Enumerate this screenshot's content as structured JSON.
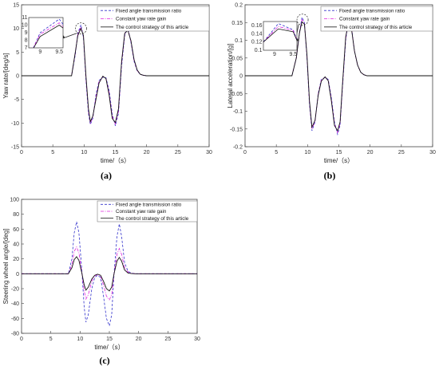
{
  "colors": {
    "fixed": "#3333cc",
    "constant": "#dd22dd",
    "control": "#111111",
    "axis": "#444444"
  },
  "chart_data": [
    {
      "type": "line",
      "caption": "(a)",
      "xlabel": "time/（s）",
      "ylabel": "Yaw rate/[deg/s]",
      "xlim": [
        0,
        30
      ],
      "ylim": [
        -15,
        15
      ],
      "xticks": [
        0,
        5,
        10,
        15,
        20,
        25,
        30
      ],
      "yticks": [
        -15,
        -10,
        -5,
        0,
        5,
        10,
        15
      ],
      "legend_position": "top-right",
      "inset": {
        "xlim": [
          8.7,
          9.6
        ],
        "ylim": [
          7,
          11
        ],
        "xticks": [
          9,
          9.5
        ],
        "yticks": [
          7,
          8,
          9,
          10,
          11
        ],
        "focus": [
          9.5,
          10
        ]
      },
      "series": [
        {
          "name": "Fixed angle transmission ratio",
          "style": "dash",
          "color": "#3333cc",
          "x": [
            0,
            8,
            8.6,
            9.0,
            9.5,
            9.9,
            10.3,
            10.7,
            11.0,
            11.4,
            11.9,
            12.4,
            13.0,
            13.5,
            14.0,
            14.5,
            15.0,
            15.5,
            16.0,
            16.5,
            17.0,
            17.5,
            18.0,
            18.5,
            19.0,
            19.5,
            20,
            20.5,
            30
          ],
          "y": [
            0,
            0,
            4.5,
            9.0,
            10.8,
            8.0,
            -1.0,
            -8.0,
            -10.3,
            -9.0,
            -4.0,
            -1.0,
            -0.3,
            -0.4,
            -3.0,
            -8.0,
            -10.6,
            -8.0,
            2.0,
            8.5,
            10.2,
            7.0,
            3.0,
            1.0,
            0.3,
            0.1,
            0,
            0,
            0
          ]
        },
        {
          "name": "Constant yaw rate gain",
          "style": "dashdot",
          "color": "#dd22dd",
          "x": [
            0,
            8,
            8.6,
            9.0,
            9.5,
            9.9,
            10.3,
            10.7,
            11.0,
            11.4,
            11.9,
            12.4,
            13.0,
            13.5,
            14.0,
            14.5,
            15.0,
            15.5,
            16.0,
            16.5,
            17.0,
            17.5,
            18.0,
            18.5,
            19.0,
            19.5,
            20,
            20.5,
            30
          ],
          "y": [
            0,
            0,
            4.8,
            8.8,
            10.3,
            8.3,
            -0.5,
            -7.5,
            -10.0,
            -8.7,
            -4.5,
            -1.2,
            -0.2,
            -0.5,
            -3.5,
            -8.5,
            -10.2,
            -7.5,
            2.5,
            8.8,
            9.8,
            7.2,
            3.2,
            1.1,
            0.3,
            0.1,
            0,
            0,
            0
          ]
        },
        {
          "name": "The control strategy of this article",
          "style": "solid",
          "color": "#111111",
          "x": [
            0,
            8,
            8.6,
            9.0,
            9.5,
            9.9,
            10.3,
            10.7,
            11.0,
            11.4,
            11.9,
            12.4,
            13.0,
            13.5,
            14.0,
            14.5,
            15.0,
            15.5,
            16.0,
            16.5,
            17.0,
            17.5,
            18.0,
            18.5,
            19.0,
            19.5,
            20,
            20.5,
            30
          ],
          "y": [
            0,
            0,
            5.0,
            8.5,
            10.0,
            8.5,
            0.0,
            -7.0,
            -9.7,
            -8.5,
            -5.0,
            -1.5,
            -0.1,
            -0.6,
            -4.0,
            -9.0,
            -9.9,
            -7.0,
            3.0,
            9.0,
            9.6,
            7.4,
            3.4,
            1.2,
            0.3,
            0.1,
            0,
            0,
            0
          ]
        }
      ]
    },
    {
      "type": "line",
      "caption": "(b)",
      "xlabel": "time/（s）",
      "ylabel": "Lateral acceleration/[g]",
      "xlim": [
        0,
        30
      ],
      "ylim": [
        -0.2,
        0.2
      ],
      "xticks": [
        0,
        5,
        10,
        15,
        20,
        25,
        30
      ],
      "yticks": [
        -0.2,
        -0.15,
        -0.1,
        -0.05,
        0,
        0.05,
        0.1,
        0.15,
        0.2
      ],
      "legend_position": "top-right",
      "inset": {
        "xlim": [
          8.7,
          9.6
        ],
        "ylim": [
          0.1,
          0.17
        ],
        "xticks": [
          9,
          9.5
        ],
        "yticks": [
          0.1,
          0.12,
          0.14,
          0.16
        ],
        "focus": [
          9.2,
          0.158
        ]
      },
      "series": [
        {
          "name": "Fixed angle transmission ratio",
          "style": "dash",
          "color": "#3333cc",
          "x": [
            0,
            7.5,
            8.2,
            8.7,
            9.1,
            9.5,
            9.9,
            10.3,
            10.7,
            11.2,
            11.7,
            12.2,
            12.8,
            13.3,
            13.8,
            14.3,
            14.8,
            15.2,
            15.6,
            16.1,
            16.6,
            17.0,
            17.5,
            18.0,
            18.5,
            19,
            19.5,
            20,
            30
          ],
          "y": [
            0,
            0,
            0.05,
            0.12,
            0.165,
            0.15,
            0.05,
            -0.08,
            -0.155,
            -0.13,
            -0.05,
            -0.01,
            -0.005,
            -0.01,
            -0.06,
            -0.13,
            -0.165,
            -0.14,
            -0.03,
            0.1,
            0.165,
            0.14,
            0.07,
            0.03,
            0.01,
            0.003,
            0,
            0,
            0
          ]
        },
        {
          "name": "Constant yaw rate gain",
          "style": "dashdot",
          "color": "#dd22dd",
          "x": [
            0,
            7.5,
            8.2,
            8.7,
            9.1,
            9.5,
            9.9,
            10.3,
            10.7,
            11.2,
            11.7,
            12.2,
            12.8,
            13.3,
            13.8,
            14.3,
            14.8,
            15.2,
            15.6,
            16.1,
            16.6,
            17.0,
            17.5,
            18.0,
            18.5,
            19,
            19.5,
            20,
            30
          ],
          "y": [
            0,
            0,
            0.05,
            0.12,
            0.158,
            0.148,
            0.055,
            -0.075,
            -0.15,
            -0.128,
            -0.052,
            -0.012,
            -0.004,
            -0.012,
            -0.065,
            -0.135,
            -0.16,
            -0.135,
            -0.025,
            0.105,
            0.16,
            0.138,
            0.07,
            0.03,
            0.01,
            0.003,
            0,
            0,
            0
          ]
        },
        {
          "name": "The control strategy of this article",
          "style": "solid",
          "color": "#111111",
          "x": [
            0,
            7.5,
            8.2,
            8.7,
            9.1,
            9.5,
            9.9,
            10.3,
            10.7,
            11.2,
            11.7,
            12.2,
            12.8,
            13.3,
            13.8,
            14.3,
            14.8,
            15.2,
            15.6,
            16.1,
            16.6,
            17.0,
            17.5,
            18.0,
            18.5,
            19,
            19.5,
            20,
            30
          ],
          "y": [
            0,
            0,
            0.05,
            0.12,
            0.152,
            0.145,
            0.06,
            -0.07,
            -0.145,
            -0.125,
            -0.055,
            -0.015,
            -0.003,
            -0.014,
            -0.07,
            -0.14,
            -0.155,
            -0.13,
            -0.02,
            0.11,
            0.155,
            0.135,
            0.07,
            0.03,
            0.01,
            0.003,
            0,
            0,
            0
          ]
        }
      ]
    },
    {
      "type": "line",
      "caption": "(c)",
      "xlabel": "time/（s）",
      "ylabel": "Steering wheel angle/[deg]",
      "xlim": [
        0,
        30
      ],
      "ylim": [
        -80,
        100
      ],
      "xticks": [
        0,
        5,
        10,
        15,
        20,
        25,
        30
      ],
      "yticks": [
        -80,
        -60,
        -40,
        -20,
        0,
        20,
        40,
        60,
        80,
        100
      ],
      "legend_position": "top-right",
      "series": [
        {
          "name": "Fixed angle transmission ratio",
          "style": "dash",
          "color": "#3333cc",
          "x": [
            0,
            8,
            8.6,
            9.0,
            9.4,
            9.8,
            10.3,
            10.7,
            11.0,
            11.4,
            12.0,
            12.5,
            13.0,
            13.5,
            14.0,
            14.5,
            15.0,
            15.4,
            15.8,
            16.3,
            16.7,
            17.1,
            17.6,
            18.2,
            18.8,
            19.5,
            20,
            30
          ],
          "y": [
            0,
            0,
            20,
            55,
            70,
            55,
            5,
            -45,
            -65,
            -55,
            -20,
            -5,
            -2,
            -5,
            -30,
            -60,
            -70,
            -55,
            0,
            50,
            67,
            50,
            15,
            3,
            1,
            0,
            0,
            0
          ]
        },
        {
          "name": "Constant yaw rate gain",
          "style": "dashdot",
          "color": "#dd22dd",
          "x": [
            0,
            8,
            8.6,
            9.0,
            9.4,
            9.8,
            10.3,
            10.7,
            11.0,
            11.4,
            12.0,
            12.5,
            13.0,
            13.5,
            14.0,
            14.5,
            15.0,
            15.4,
            15.8,
            16.3,
            16.7,
            17.1,
            17.6,
            18.2,
            18.8,
            19.5,
            20,
            30
          ],
          "y": [
            0,
            0,
            12,
            30,
            36,
            28,
            2,
            -23,
            -34,
            -28,
            -10,
            -3,
            -1,
            -3,
            -15,
            -30,
            -35,
            -28,
            0,
            26,
            34,
            26,
            8,
            2,
            0.5,
            0,
            0,
            0
          ]
        },
        {
          "name": "The control strategy of this article",
          "style": "solid",
          "color": "#111111",
          "x": [
            0,
            8,
            8.6,
            9.0,
            9.4,
            9.8,
            10.3,
            10.7,
            11.0,
            11.4,
            12.0,
            12.5,
            13.0,
            13.5,
            14.0,
            14.5,
            15.0,
            15.4,
            15.8,
            16.3,
            16.7,
            17.1,
            17.6,
            18.2,
            18.8,
            19.5,
            20,
            30
          ],
          "y": [
            0,
            0,
            8,
            19,
            23,
            18,
            1,
            -15,
            -22,
            -18,
            -7,
            -2,
            -0.5,
            -2,
            -10,
            -20,
            -23,
            -18,
            0,
            17,
            22,
            17,
            5,
            1,
            0.3,
            0,
            0,
            0
          ]
        }
      ]
    }
  ]
}
